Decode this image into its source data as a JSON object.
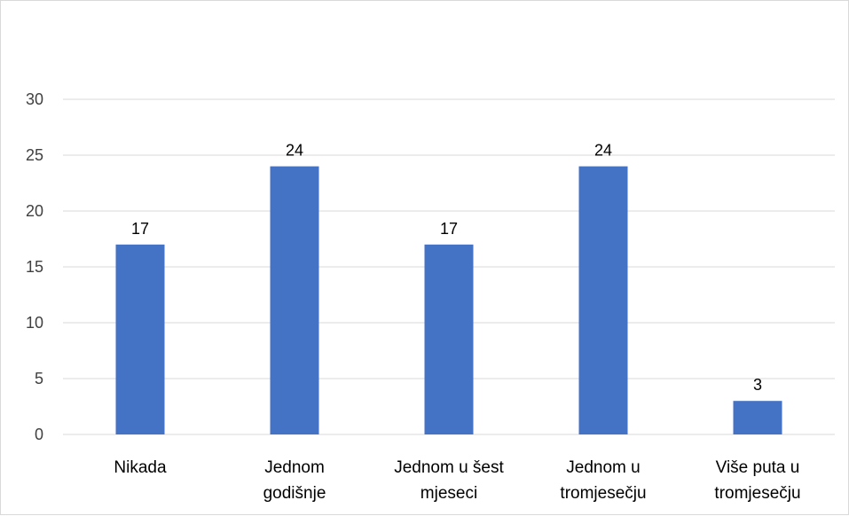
{
  "chart_data": {
    "type": "bar",
    "categories": [
      [
        "Nikada"
      ],
      [
        "Jednom",
        "godišnje"
      ],
      [
        "Jednom u šest",
        "mjeseci"
      ],
      [
        "Jednom u",
        "tromjesečju"
      ],
      [
        "Više puta u",
        "tromjesečju"
      ]
    ],
    "values": [
      17,
      24,
      17,
      24,
      3
    ],
    "data_labels": [
      "17",
      "24",
      "17",
      "24",
      "3"
    ],
    "y_ticks": [
      "0",
      "5",
      "10",
      "15",
      "20",
      "25",
      "30"
    ],
    "ylim": [
      0,
      30
    ],
    "grid": true,
    "legend": "none",
    "colors": {
      "bar": "#4472c4",
      "grid": "#d9d9d9",
      "axis": "#d9d9d9",
      "tick_text": "#404040"
    }
  }
}
